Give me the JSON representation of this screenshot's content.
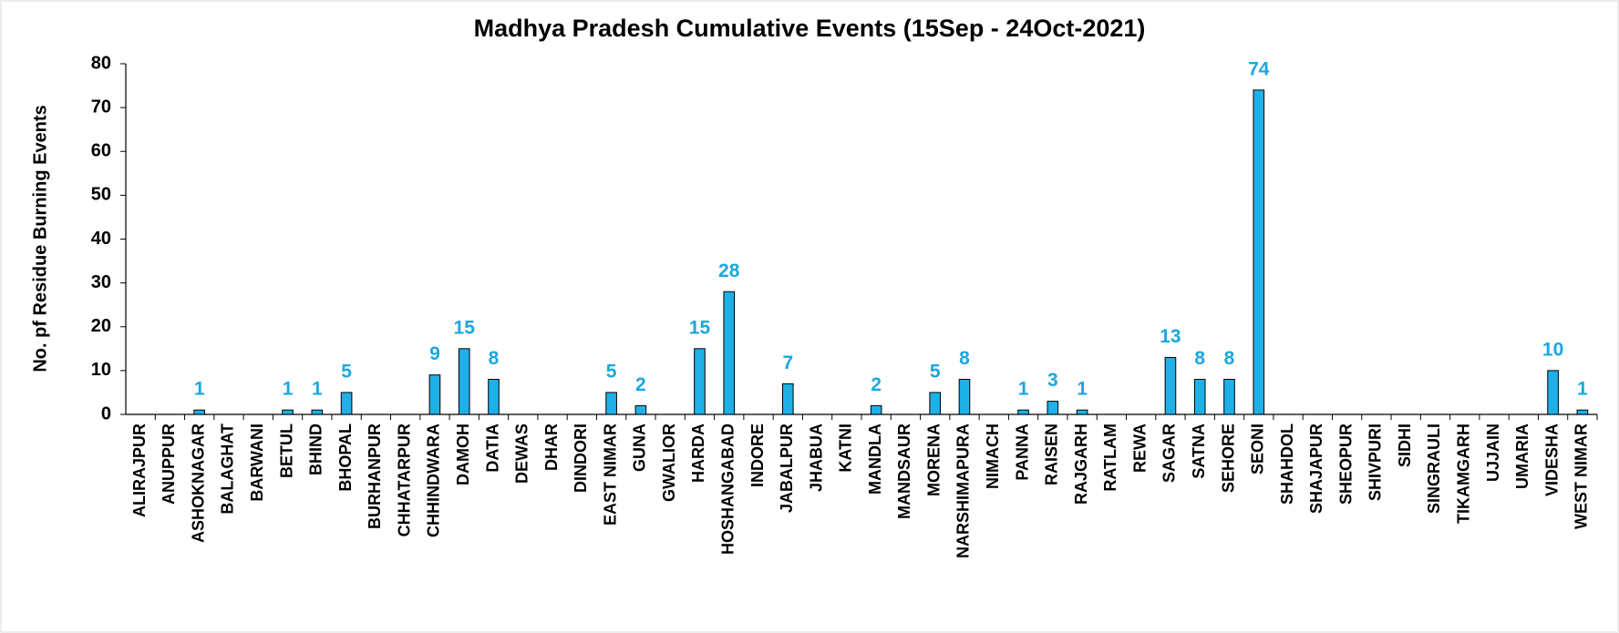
{
  "chart_data": {
    "type": "bar",
    "title": "Madhya Pradesh Cumulative Events (15Sep - 24Oct-2021)",
    "y_label": "No. pf Residue Burning Events",
    "categories": [
      "ALIRAJPUR",
      "ANUPPUR",
      "ASHOKNAGAR",
      "BALAGHAT",
      "BARWANI",
      "BETUL",
      "BHIND",
      "BHOPAL",
      "BURHANPUR",
      "CHHATARPUR",
      "CHHINDWARA",
      "DAMOH",
      "DATIA",
      "DEWAS",
      "DHAR",
      "DINDORI",
      "EAST NIMAR",
      "GUNA",
      "GWALIOR",
      "HARDA",
      "HOSHANGABAD",
      "INDORE",
      "JABALPUR",
      "JHABUA",
      "KATNI",
      "MANDLA",
      "MANDSAUR",
      "MORENA",
      "NARSHIMAPURA",
      "NIMACH",
      "PANNA",
      "RAISEN",
      "RAJGARH",
      "RATLAM",
      "REWA",
      "SAGAR",
      "SATNA",
      "SEHORE",
      "SEONI",
      "SHAHDOL",
      "SHAJAPUR",
      "SHEOPUR",
      "SHIVPURI",
      "SIDHI",
      "SINGRAULI",
      "TIKAMGARH",
      "UJJAIN",
      "UMARIA",
      "VIDESHA",
      "WEST NIMAR"
    ],
    "values": [
      0,
      0,
      1,
      0,
      0,
      1,
      1,
      5,
      0,
      0,
      9,
      15,
      8,
      0,
      0,
      0,
      5,
      2,
      0,
      15,
      28,
      0,
      7,
      0,
      0,
      2,
      0,
      5,
      8,
      0,
      1,
      3,
      1,
      0,
      0,
      13,
      8,
      8,
      74,
      0,
      0,
      0,
      0,
      0,
      0,
      0,
      0,
      0,
      10,
      1
    ],
    "color": "#1fb0e8",
    "ylim": [
      0,
      80
    ],
    "yticks": [
      0,
      10,
      20,
      30,
      40,
      50,
      60,
      70,
      80
    ],
    "grid": false
  }
}
